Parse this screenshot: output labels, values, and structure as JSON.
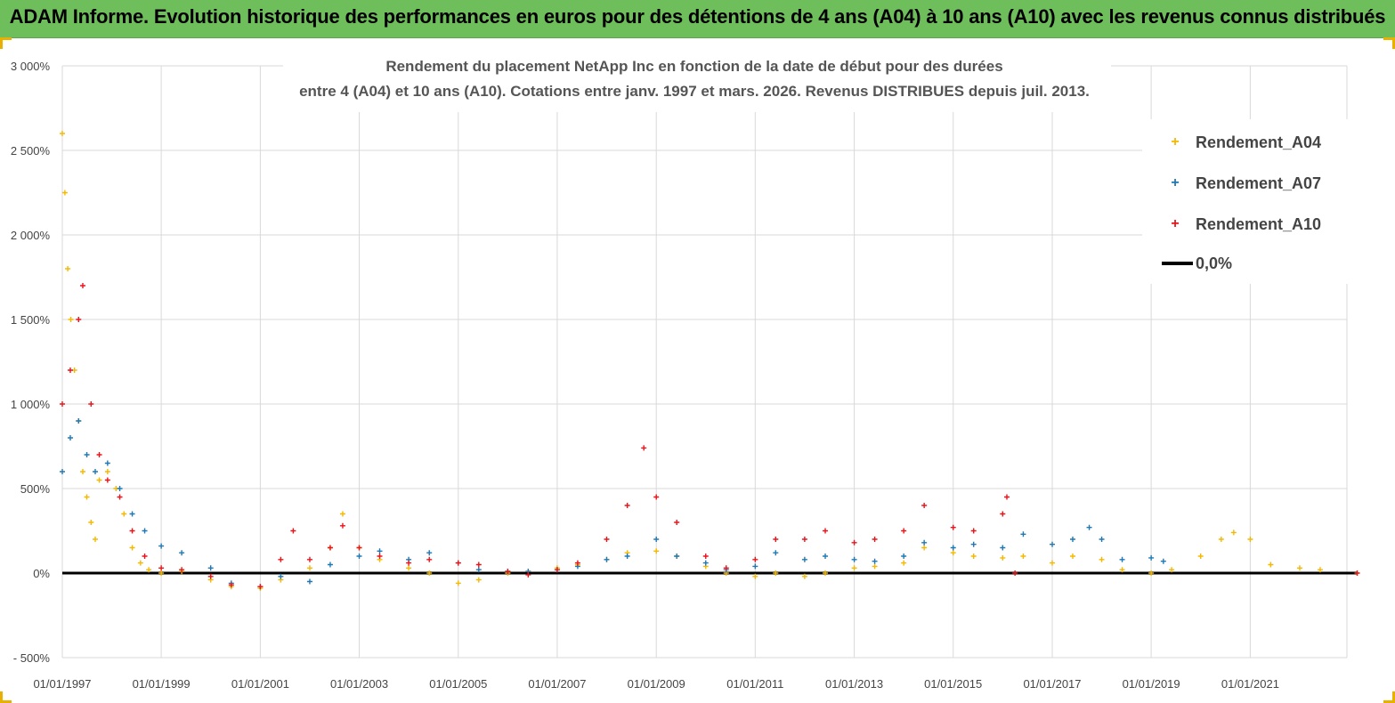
{
  "header": {
    "title": "ADAM Informe. Evolution historique des performances en euros pour des détentions de 4 ans (A04) à 10 ans (A10) avec les revenus connus distribués"
  },
  "colors": {
    "banner": "#6fbe5c",
    "grid": "#d9d9d9",
    "A04": "#f5b800",
    "A07": "#1f78b4",
    "A10": "#e8141b",
    "zero": "#000000"
  },
  "chart_data": {
    "type": "scatter",
    "title_lines": [
      "Rendement du placement NetApp Inc en fonction de la date de début pour des durées",
      "entre 4 (A04) et 10 ans (A10). Cotations entre janv. 1997 et mars. 2026. Revenus DISTRIBUES depuis juil. 2013."
    ],
    "xlabel": "",
    "ylabel": "",
    "x_range": [
      "1997-01-01",
      "2023-03-01"
    ],
    "ylim": [
      -500,
      3000
    ],
    "y_ticks": [
      "3 000%",
      "2 500%",
      "2 000%",
      "1 500%",
      "1 000%",
      "500%",
      "0%",
      "- 500%"
    ],
    "y_tick_values": [
      3000,
      2500,
      2000,
      1500,
      1000,
      500,
      0,
      -500
    ],
    "x_ticks": [
      "01/01/1997",
      "01/01/1999",
      "01/01/2001",
      "01/01/2003",
      "01/01/2005",
      "01/01/2007",
      "01/01/2009",
      "01/01/2011",
      "01/01/2013",
      "01/01/2015",
      "01/01/2017",
      "01/01/2019",
      "01/01/2021"
    ],
    "grid": true,
    "legend_position": "top-right",
    "legend": [
      "Rendement_A04",
      "Rendement_A07",
      "Rendement_A10",
      "0,0%"
    ],
    "series": [
      {
        "name": "Rendement_A04",
        "marker": "+",
        "points": [
          [
            "1997-01-01",
            2600
          ],
          [
            "1997-01-20",
            2250
          ],
          [
            "1997-02-10",
            1800
          ],
          [
            "1997-03-05",
            1500
          ],
          [
            "1997-04-01",
            1200
          ],
          [
            "1997-05-01",
            900
          ],
          [
            "1997-06-01",
            600
          ],
          [
            "1997-07-01",
            450
          ],
          [
            "1997-08-01",
            300
          ],
          [
            "1997-09-01",
            200
          ],
          [
            "1997-10-01",
            550
          ],
          [
            "1997-12-01",
            600
          ],
          [
            "1998-02-01",
            500
          ],
          [
            "1998-04-01",
            350
          ],
          [
            "1998-06-01",
            150
          ],
          [
            "1998-08-01",
            60
          ],
          [
            "1998-10-01",
            20
          ],
          [
            "1999-01-01",
            0
          ],
          [
            "1999-06-01",
            10
          ],
          [
            "2000-01-01",
            -40
          ],
          [
            "2000-06-01",
            -80
          ],
          [
            "2001-01-01",
            -90
          ],
          [
            "2001-06-01",
            -40
          ],
          [
            "2002-01-01",
            30
          ],
          [
            "2002-06-01",
            150
          ],
          [
            "2002-09-01",
            350
          ],
          [
            "2003-01-01",
            150
          ],
          [
            "2003-06-01",
            80
          ],
          [
            "2004-01-01",
            30
          ],
          [
            "2004-06-01",
            0
          ],
          [
            "2005-01-01",
            -60
          ],
          [
            "2005-06-01",
            -40
          ],
          [
            "2006-01-01",
            0
          ],
          [
            "2006-06-01",
            10
          ],
          [
            "2007-01-01",
            30
          ],
          [
            "2007-06-01",
            50
          ],
          [
            "2008-01-01",
            80
          ],
          [
            "2008-06-01",
            120
          ],
          [
            "2009-01-01",
            130
          ],
          [
            "2009-06-01",
            100
          ],
          [
            "2010-01-01",
            40
          ],
          [
            "2010-06-01",
            0
          ],
          [
            "2011-01-01",
            -20
          ],
          [
            "2011-06-01",
            0
          ],
          [
            "2012-01-01",
            -20
          ],
          [
            "2012-06-01",
            0
          ],
          [
            "2013-01-01",
            30
          ],
          [
            "2013-06-01",
            40
          ],
          [
            "2014-01-01",
            60
          ],
          [
            "2014-06-01",
            150
          ],
          [
            "2015-01-01",
            120
          ],
          [
            "2015-06-01",
            100
          ],
          [
            "2016-01-01",
            90
          ],
          [
            "2016-06-01",
            100
          ],
          [
            "2017-01-01",
            60
          ],
          [
            "2017-06-01",
            100
          ],
          [
            "2018-01-01",
            80
          ],
          [
            "2018-06-01",
            20
          ],
          [
            "2019-01-01",
            0
          ],
          [
            "2019-06-01",
            20
          ],
          [
            "2020-01-01",
            100
          ],
          [
            "2020-06-01",
            200
          ],
          [
            "2020-09-01",
            240
          ],
          [
            "2021-01-01",
            200
          ],
          [
            "2021-06-01",
            50
          ],
          [
            "2022-01-01",
            30
          ],
          [
            "2022-06-01",
            20
          ],
          [
            "2023-03-01",
            0
          ]
        ]
      },
      {
        "name": "Rendement_A07",
        "marker": "+",
        "points": [
          [
            "1997-01-01",
            600
          ],
          [
            "1997-03-01",
            800
          ],
          [
            "1997-05-01",
            900
          ],
          [
            "1997-07-01",
            700
          ],
          [
            "1997-09-01",
            600
          ],
          [
            "1997-12-01",
            650
          ],
          [
            "1998-03-01",
            500
          ],
          [
            "1998-06-01",
            350
          ],
          [
            "1998-09-01",
            250
          ],
          [
            "1999-01-01",
            160
          ],
          [
            "1999-06-01",
            120
          ],
          [
            "2000-01-01",
            30
          ],
          [
            "2000-06-01",
            -60
          ],
          [
            "2001-01-01",
            -80
          ],
          [
            "2001-06-01",
            -20
          ],
          [
            "2002-01-01",
            -50
          ],
          [
            "2002-06-01",
            50
          ],
          [
            "2003-01-01",
            100
          ],
          [
            "2003-06-01",
            130
          ],
          [
            "2004-01-01",
            80
          ],
          [
            "2004-06-01",
            120
          ],
          [
            "2005-01-01",
            60
          ],
          [
            "2005-06-01",
            20
          ],
          [
            "2006-01-01",
            10
          ],
          [
            "2006-06-01",
            10
          ],
          [
            "2007-01-01",
            20
          ],
          [
            "2007-06-01",
            40
          ],
          [
            "2008-01-01",
            80
          ],
          [
            "2008-06-01",
            100
          ],
          [
            "2009-01-01",
            200
          ],
          [
            "2009-06-01",
            100
          ],
          [
            "2010-01-01",
            60
          ],
          [
            "2010-06-01",
            20
          ],
          [
            "2011-01-01",
            40
          ],
          [
            "2011-06-01",
            120
          ],
          [
            "2012-01-01",
            80
          ],
          [
            "2012-06-01",
            100
          ],
          [
            "2013-01-01",
            80
          ],
          [
            "2013-06-01",
            70
          ],
          [
            "2014-01-01",
            100
          ],
          [
            "2014-06-01",
            180
          ],
          [
            "2015-01-01",
            150
          ],
          [
            "2015-06-01",
            170
          ],
          [
            "2016-01-01",
            150
          ],
          [
            "2016-06-01",
            230
          ],
          [
            "2017-01-01",
            170
          ],
          [
            "2017-06-01",
            200
          ],
          [
            "2017-10-01",
            270
          ],
          [
            "2018-01-01",
            200
          ],
          [
            "2018-06-01",
            80
          ],
          [
            "2019-01-01",
            90
          ],
          [
            "2019-04-01",
            70
          ]
        ]
      },
      {
        "name": "Rendement_A10",
        "marker": "+",
        "points": [
          [
            "1997-01-01",
            1000
          ],
          [
            "1997-03-01",
            1200
          ],
          [
            "1997-05-01",
            1500
          ],
          [
            "1997-06-01",
            1700
          ],
          [
            "1997-08-01",
            1000
          ],
          [
            "1997-10-01",
            700
          ],
          [
            "1997-12-01",
            550
          ],
          [
            "1998-03-01",
            450
          ],
          [
            "1998-06-01",
            250
          ],
          [
            "1998-09-01",
            100
          ],
          [
            "1999-01-01",
            30
          ],
          [
            "1999-06-01",
            20
          ],
          [
            "2000-01-01",
            -20
          ],
          [
            "2000-06-01",
            -70
          ],
          [
            "2001-01-01",
            -80
          ],
          [
            "2001-06-01",
            80
          ],
          [
            "2001-09-01",
            250
          ],
          [
            "2002-01-01",
            80
          ],
          [
            "2002-06-01",
            150
          ],
          [
            "2002-09-01",
            280
          ],
          [
            "2003-01-01",
            150
          ],
          [
            "2003-06-01",
            100
          ],
          [
            "2004-01-01",
            60
          ],
          [
            "2004-06-01",
            80
          ],
          [
            "2005-01-01",
            60
          ],
          [
            "2005-06-01",
            50
          ],
          [
            "2006-01-01",
            10
          ],
          [
            "2006-06-01",
            -10
          ],
          [
            "2007-01-01",
            20
          ],
          [
            "2007-06-01",
            60
          ],
          [
            "2008-01-01",
            200
          ],
          [
            "2008-06-01",
            400
          ],
          [
            "2008-10-01",
            740
          ],
          [
            "2009-01-01",
            450
          ],
          [
            "2009-06-01",
            300
          ],
          [
            "2010-01-01",
            100
          ],
          [
            "2010-06-01",
            30
          ],
          [
            "2011-01-01",
            80
          ],
          [
            "2011-06-01",
            200
          ],
          [
            "2012-01-01",
            200
          ],
          [
            "2012-06-01",
            250
          ],
          [
            "2013-01-01",
            180
          ],
          [
            "2013-06-01",
            200
          ],
          [
            "2014-01-01",
            250
          ],
          [
            "2014-06-01",
            400
          ],
          [
            "2015-01-01",
            270
          ],
          [
            "2015-06-01",
            250
          ],
          [
            "2016-01-01",
            350
          ],
          [
            "2016-02-01",
            450
          ],
          [
            "2016-04-01",
            0
          ],
          [
            "2023-03-01",
            0
          ]
        ]
      },
      {
        "name": "0,0%",
        "marker": "line",
        "points": [
          [
            "1997-01-01",
            0
          ],
          [
            "2023-03-01",
            0
          ]
        ]
      }
    ]
  }
}
